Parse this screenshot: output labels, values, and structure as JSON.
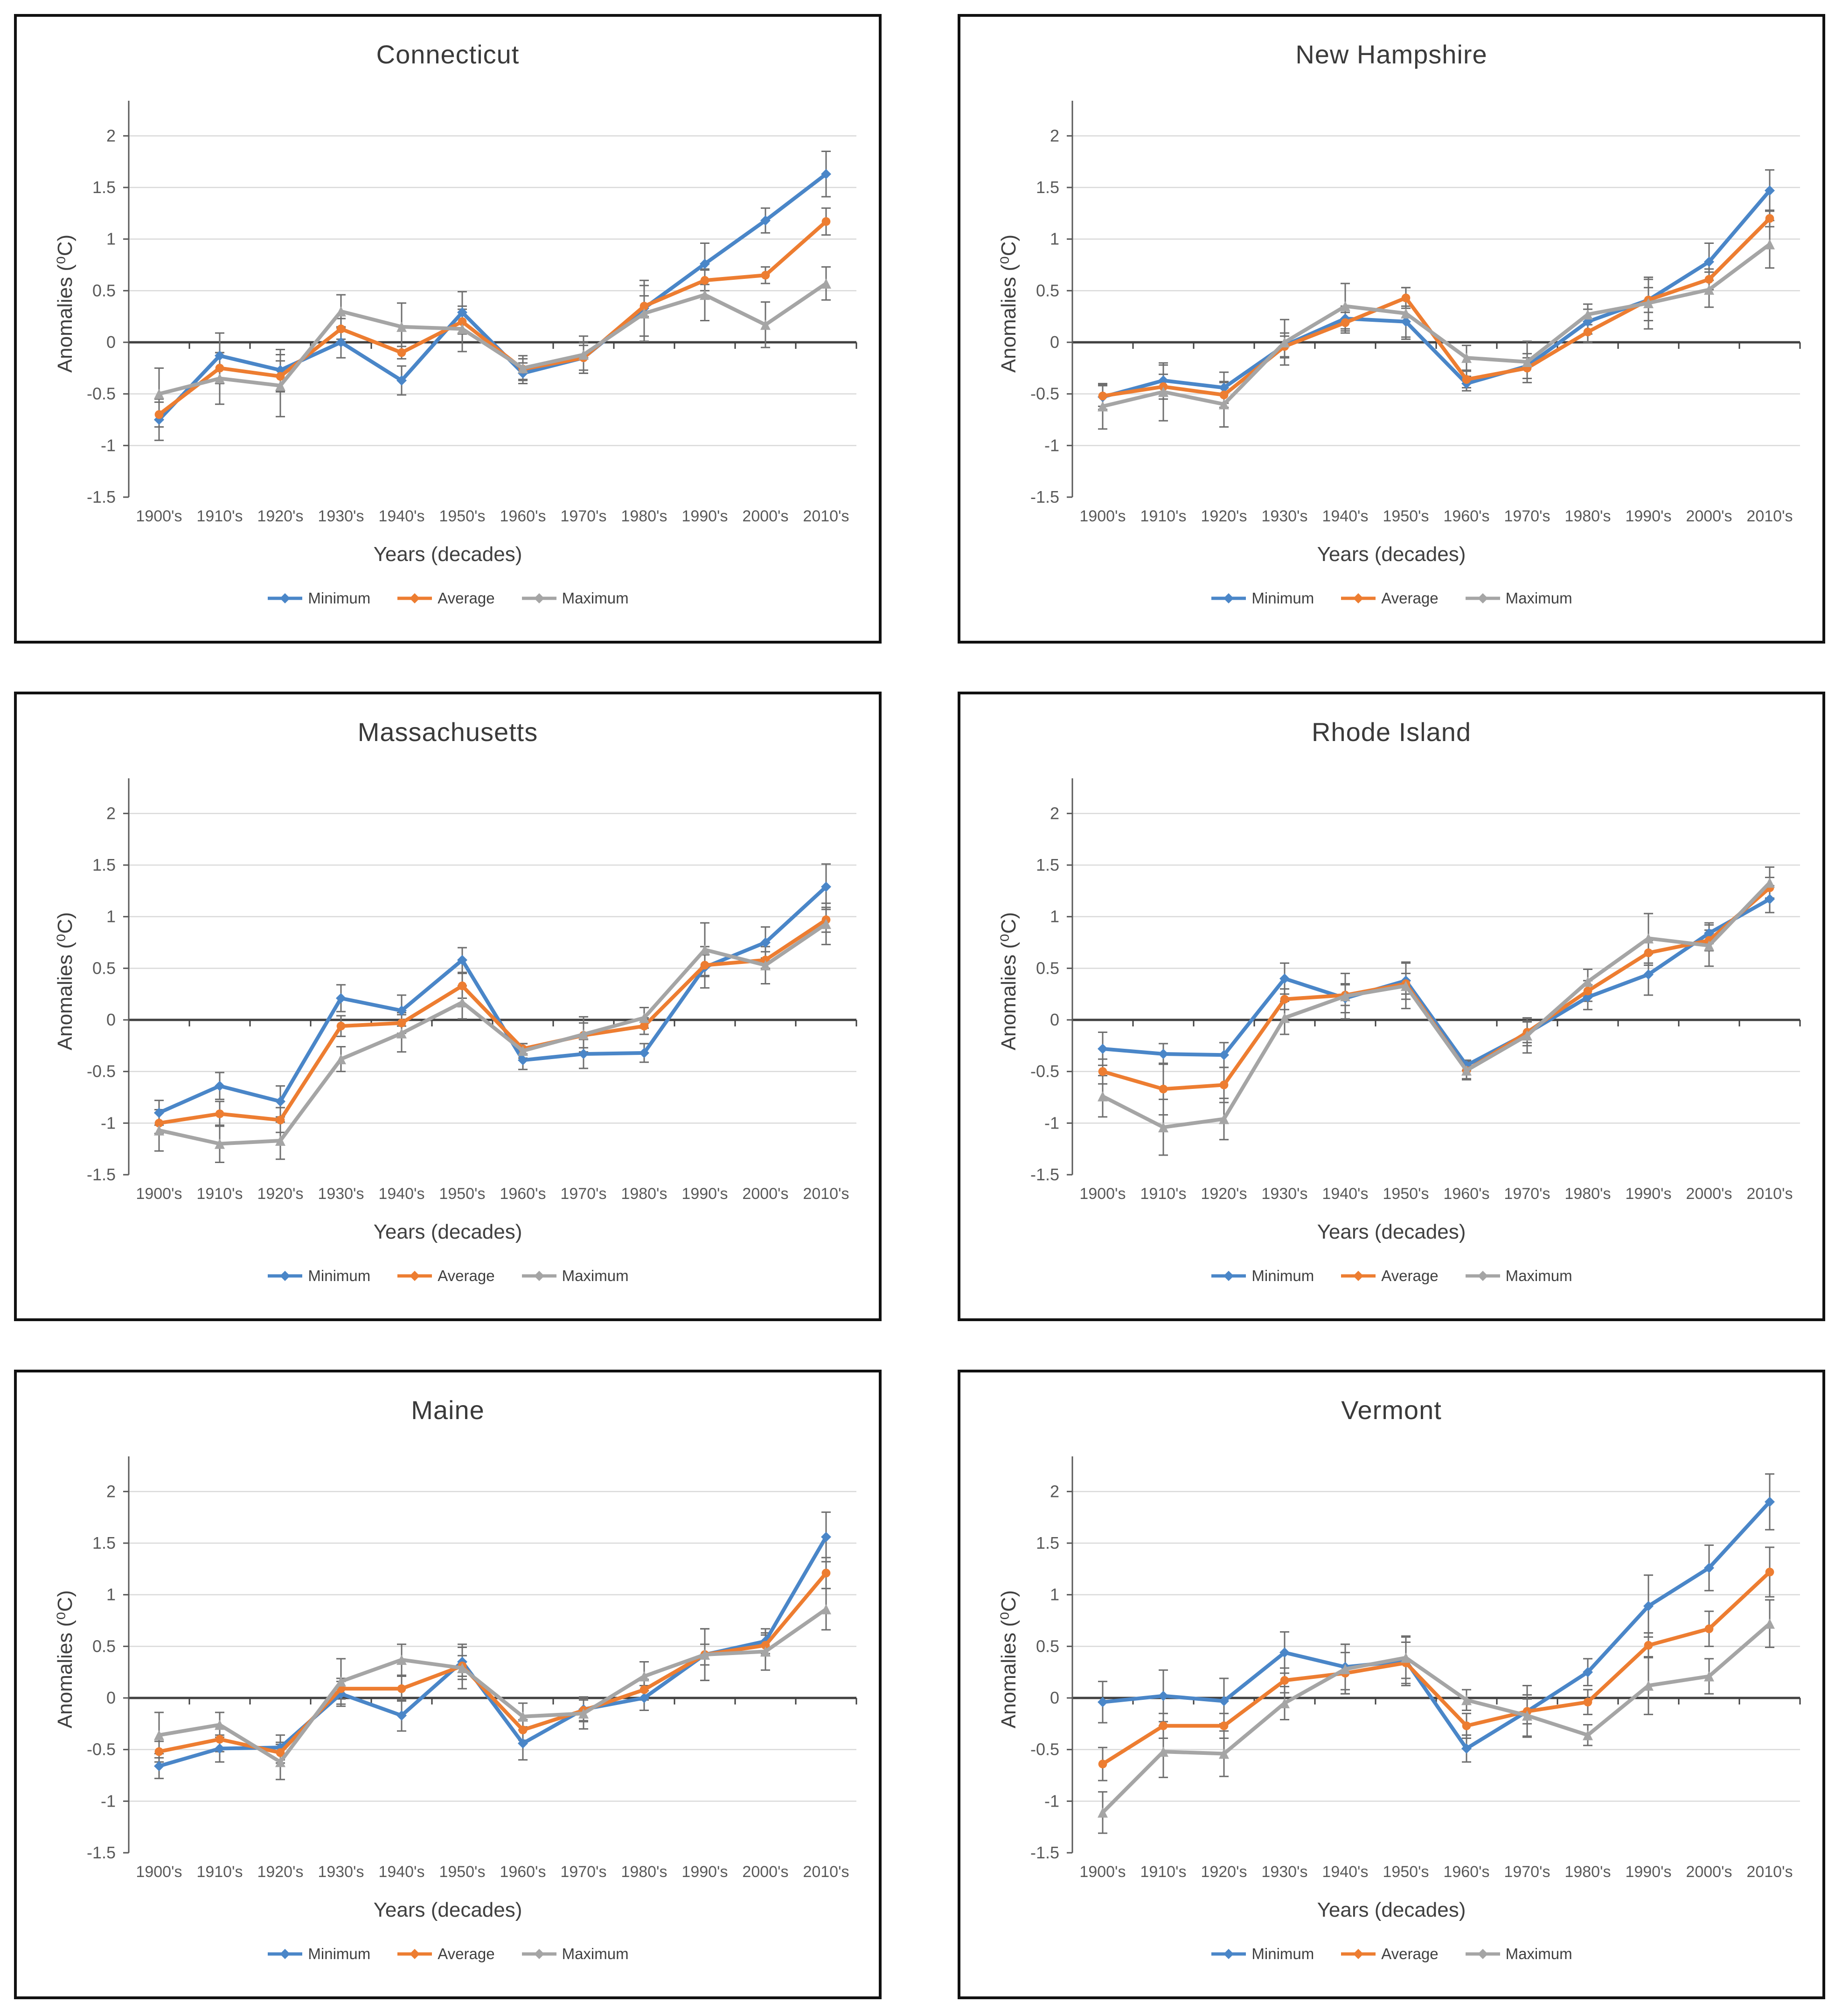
{
  "shared": {
    "xlabel": "Years (decades)",
    "ylabel": "Anomalies (⁰C)",
    "x_categories": [
      "1900's",
      "1910's",
      "1920's",
      "1930's",
      "1940's",
      "1950's",
      "1960's",
      "1970's",
      "1980's",
      "1990's",
      "2000's",
      "2010's"
    ],
    "ylim": [
      -1.5,
      2.25
    ],
    "yticks": [
      2,
      1.5,
      1,
      0.5,
      0,
      -0.5,
      -1,
      -1.5
    ],
    "grid": "horizontal",
    "legend_position": "bottom",
    "legend": [
      {
        "label": "Minimum",
        "color": "#4a86c8",
        "marker": "diamond"
      },
      {
        "label": "Average",
        "color": "#ed7d31",
        "marker": "circle"
      },
      {
        "label": "Maximum",
        "color": "#a5a5a5",
        "marker": "triangle"
      }
    ],
    "colors": {
      "minimum": "#4a86c8",
      "average": "#ed7d31",
      "maximum": "#a5a5a5",
      "error_bar": "#6e6e6e",
      "gridline": "#d9d9d9",
      "zero_axis": "#404040",
      "y_axis": "#595959",
      "tick_text": "#595959"
    }
  },
  "chart_data": [
    {
      "type": "line",
      "title": "Connecticut",
      "series": [
        {
          "name": "Minimum",
          "values": [
            -0.75,
            -0.13,
            -0.27,
            0.0,
            -0.37,
            0.29,
            -0.3,
            -0.15,
            0.33,
            0.76,
            1.18,
            1.63
          ],
          "err": [
            0.2,
            0.22,
            0.2,
            0.15,
            0.14,
            0.2,
            0.1,
            0.15,
            0.27,
            0.2,
            0.12,
            0.22
          ]
        },
        {
          "name": "Average",
          "values": [
            -0.7,
            -0.25,
            -0.33,
            0.13,
            -0.1,
            0.2,
            -0.26,
            -0.15,
            0.35,
            0.6,
            0.65,
            1.17
          ],
          "err": [
            0.12,
            0.15,
            0.15,
            0.1,
            0.06,
            0.12,
            0.1,
            0.12,
            0.1,
            0.1,
            0.08,
            0.13
          ]
        },
        {
          "name": "Maximum",
          "values": [
            -0.5,
            -0.35,
            -0.42,
            0.3,
            0.15,
            0.13,
            -0.25,
            -0.12,
            0.28,
            0.46,
            0.17,
            0.57
          ],
          "err": [
            0.25,
            0.25,
            0.3,
            0.16,
            0.23,
            0.22,
            0.12,
            0.18,
            0.27,
            0.25,
            0.22,
            0.16
          ]
        }
      ]
    },
    {
      "type": "line",
      "title": "New Hampshire",
      "series": [
        {
          "name": "Minimum",
          "values": [
            -0.53,
            -0.37,
            -0.44,
            -0.03,
            0.23,
            0.2,
            -0.4,
            -0.23,
            0.2,
            0.41,
            0.78,
            1.47
          ],
          "err": [
            0.12,
            0.15,
            0.15,
            0.12,
            0.12,
            0.15,
            0.07,
            0.12,
            0.12,
            0.2,
            0.18,
            0.2
          ]
        },
        {
          "name": "Average",
          "values": [
            -0.52,
            -0.43,
            -0.51,
            -0.04,
            0.19,
            0.43,
            -0.36,
            -0.25,
            0.1,
            0.41,
            0.61,
            1.2
          ],
          "err": [
            0.1,
            0.12,
            0.12,
            0.1,
            0.1,
            0.1,
            0.08,
            0.1,
            0.1,
            0.12,
            0.1,
            0.08
          ]
        },
        {
          "name": "Maximum",
          "values": [
            -0.62,
            -0.48,
            -0.6,
            0.0,
            0.35,
            0.28,
            -0.15,
            -0.19,
            0.27,
            0.38,
            0.51,
            0.95
          ],
          "err": [
            0.22,
            0.28,
            0.22,
            0.22,
            0.22,
            0.25,
            0.12,
            0.2,
            0.1,
            0.25,
            0.17,
            0.23
          ]
        }
      ]
    },
    {
      "type": "line",
      "title": "Massachusetts",
      "series": [
        {
          "name": "Minimum",
          "values": [
            -0.9,
            -0.64,
            -0.79,
            0.21,
            0.09,
            0.58,
            -0.39,
            -0.33,
            -0.32,
            0.51,
            0.75,
            1.29
          ],
          "err": [
            0.12,
            0.13,
            0.15,
            0.13,
            0.15,
            0.12,
            0.09,
            0.14,
            0.09,
            0.2,
            0.15,
            0.22
          ]
        },
        {
          "name": "Average",
          "values": [
            -1.0,
            -0.91,
            -0.97,
            -0.06,
            -0.03,
            0.33,
            -0.28,
            -0.15,
            -0.06,
            0.53,
            0.58,
            0.97
          ],
          "err": [
            0.1,
            0.12,
            0.12,
            0.1,
            0.1,
            0.12,
            0.05,
            0.12,
            0.08,
            0.1,
            0.08,
            0.12
          ]
        },
        {
          "name": "Maximum",
          "values": [
            -1.07,
            -1.2,
            -1.17,
            -0.38,
            -0.13,
            0.17,
            -0.3,
            -0.14,
            0.02,
            0.68,
            0.53,
            0.93
          ],
          "err": [
            0.2,
            0.18,
            0.18,
            0.12,
            0.18,
            0.16,
            0.07,
            0.17,
            0.1,
            0.26,
            0.18,
            0.2
          ]
        }
      ]
    },
    {
      "type": "line",
      "title": "Rhode Island",
      "series": [
        {
          "name": "Minimum",
          "values": [
            -0.28,
            -0.33,
            -0.34,
            0.4,
            0.21,
            0.38,
            -0.44,
            -0.13,
            0.22,
            0.44,
            0.84,
            1.17
          ],
          "err": [
            0.16,
            0.1,
            0.12,
            0.15,
            0.14,
            0.18,
            0.05,
            0.12,
            0.12,
            0.2,
            0.1,
            0.13
          ]
        },
        {
          "name": "Average",
          "values": [
            -0.5,
            -0.67,
            -0.63,
            0.2,
            0.24,
            0.35,
            -0.49,
            -0.12,
            0.28,
            0.65,
            0.77,
            1.28
          ],
          "err": [
            0.12,
            0.25,
            0.17,
            0.1,
            0.1,
            0.1,
            0.08,
            0.1,
            0.1,
            0.12,
            0.1,
            0.1
          ]
        },
        {
          "name": "Maximum",
          "values": [
            -0.74,
            -1.04,
            -0.96,
            0.02,
            0.23,
            0.33,
            -0.49,
            -0.15,
            0.37,
            0.79,
            0.72,
            1.33
          ],
          "err": [
            0.2,
            0.27,
            0.2,
            0.16,
            0.22,
            0.22,
            0.09,
            0.17,
            0.12,
            0.24,
            0.2,
            0.15
          ]
        }
      ]
    },
    {
      "type": "line",
      "title": "Maine",
      "series": [
        {
          "name": "Minimum",
          "values": [
            -0.66,
            -0.49,
            -0.48,
            0.04,
            -0.17,
            0.35,
            -0.44,
            -0.11,
            0.0,
            0.42,
            0.55,
            1.56
          ],
          "err": [
            0.12,
            0.13,
            0.12,
            0.12,
            0.15,
            0.17,
            0.16,
            0.12,
            0.12,
            0.25,
            0.12,
            0.24
          ]
        },
        {
          "name": "Average",
          "values": [
            -0.52,
            -0.4,
            -0.53,
            0.09,
            0.09,
            0.31,
            -0.31,
            -0.12,
            0.08,
            0.42,
            0.51,
            1.21
          ],
          "err": [
            0.1,
            0.12,
            0.1,
            0.1,
            0.12,
            0.1,
            0.1,
            0.1,
            0.1,
            0.1,
            0.1,
            0.15
          ]
        },
        {
          "name": "Maximum",
          "values": [
            -0.36,
            -0.26,
            -0.62,
            0.16,
            0.37,
            0.29,
            -0.18,
            -0.15,
            0.21,
            0.42,
            0.45,
            0.86
          ],
          "err": [
            0.22,
            0.12,
            0.17,
            0.22,
            0.15,
            0.2,
            0.13,
            0.15,
            0.14,
            0.25,
            0.18,
            0.2
          ]
        }
      ]
    },
    {
      "type": "line",
      "title": "Vermont",
      "series": [
        {
          "name": "Minimum",
          "values": [
            -0.04,
            0.02,
            -0.03,
            0.44,
            0.3,
            0.36,
            -0.49,
            -0.13,
            0.25,
            0.89,
            1.26,
            1.9
          ],
          "err": [
            0.2,
            0.25,
            0.22,
            0.2,
            0.22,
            0.24,
            0.13,
            0.25,
            0.13,
            0.3,
            0.22,
            0.27
          ]
        },
        {
          "name": "Average",
          "values": [
            -0.64,
            -0.27,
            -0.27,
            0.17,
            0.24,
            0.34,
            -0.27,
            -0.13,
            -0.04,
            0.51,
            0.67,
            1.22
          ],
          "err": [
            0.16,
            0.12,
            0.12,
            0.12,
            0.2,
            0.2,
            0.12,
            0.12,
            0.12,
            0.12,
            0.17,
            0.24
          ]
        },
        {
          "name": "Maximum",
          "values": [
            -1.11,
            -0.52,
            -0.54,
            -0.05,
            0.28,
            0.39,
            -0.02,
            -0.17,
            -0.36,
            0.12,
            0.21,
            0.72
          ],
          "err": [
            0.2,
            0.25,
            0.22,
            0.16,
            0.24,
            0.2,
            0.1,
            0.2,
            0.1,
            0.28,
            0.17,
            0.23
          ]
        }
      ]
    }
  ]
}
